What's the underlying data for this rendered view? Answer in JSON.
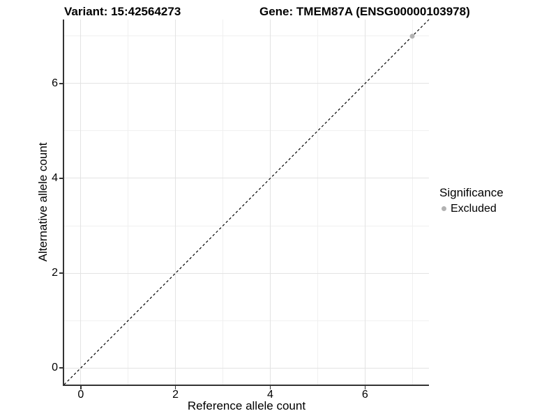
{
  "titles": {
    "variant": "Variant: 15:42564273",
    "gene": "Gene: TMEM87A (ENSG00000103978)"
  },
  "legend": {
    "title": "Significance",
    "items": [
      {
        "label": "Excluded",
        "color": "#b2b2b2"
      }
    ]
  },
  "colors": {
    "grid_major": "#e3e3e3",
    "grid_minor": "#f0f0f0",
    "axis_line": "#333333",
    "identity_line": "#000000",
    "point_excluded": "#b2b2b2"
  },
  "chart_data": {
    "type": "scatter",
    "title": "Variant: 15:42564273 — Gene: TMEM87A (ENSG00000103978)",
    "xlabel": "Reference allele count",
    "ylabel": "Alternative allele count",
    "xlim": [
      -0.35,
      7.35
    ],
    "ylim": [
      -0.35,
      7.35
    ],
    "x_major_ticks": [
      0,
      2,
      4,
      6
    ],
    "y_major_ticks": [
      0,
      2,
      4,
      6
    ],
    "x_minor_ticks": [
      1,
      3,
      5,
      7
    ],
    "y_minor_ticks": [
      1,
      3,
      5,
      7
    ],
    "grid": true,
    "legend_position": "right",
    "reference_line": {
      "kind": "identity",
      "slope": 1,
      "intercept": 0,
      "style": "dashed",
      "color": "#000000"
    },
    "series": [
      {
        "name": "Excluded",
        "color": "#b2b2b2",
        "points": [
          {
            "x": 7,
            "y": 7
          }
        ]
      }
    ]
  }
}
